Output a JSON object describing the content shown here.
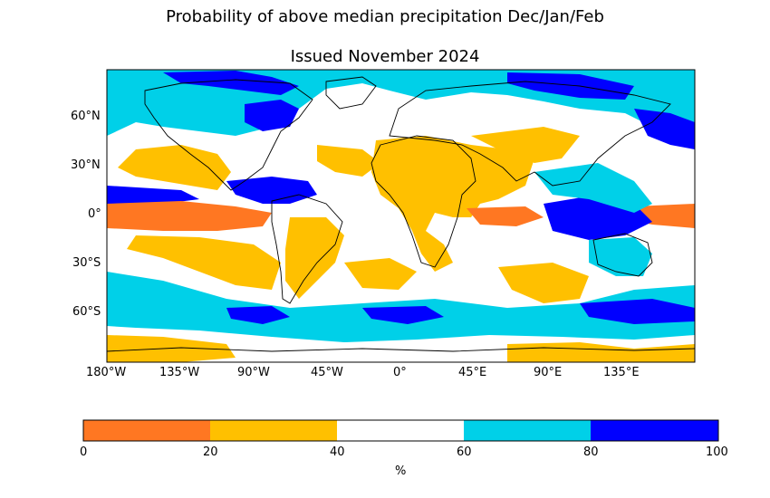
{
  "title_line1": "Probability of above median precipitation Dec/Jan/Feb",
  "title_line2": "Issued November 2024",
  "lat_ticks": [
    "60°N",
    "30°N",
    "0°",
    "30°S",
    "60°S"
  ],
  "lon_ticks": [
    "180°W",
    "135°W",
    "90°W",
    "45°W",
    "0°",
    "45°E",
    "90°E",
    "135°E"
  ],
  "colorbar": {
    "ticks": [
      "0",
      "20",
      "40",
      "60",
      "80",
      "100"
    ],
    "unit": "%",
    "categories": [
      {
        "range": [
          0,
          20
        ],
        "color": "#ff7722"
      },
      {
        "range": [
          20,
          40
        ],
        "color": "#ffc000"
      },
      {
        "range": [
          40,
          60
        ],
        "color": "#ffffff"
      },
      {
        "range": [
          60,
          80
        ],
        "color": "#00d0e8"
      },
      {
        "range": [
          80,
          100
        ],
        "color": "#0000ff"
      }
    ]
  }
}
